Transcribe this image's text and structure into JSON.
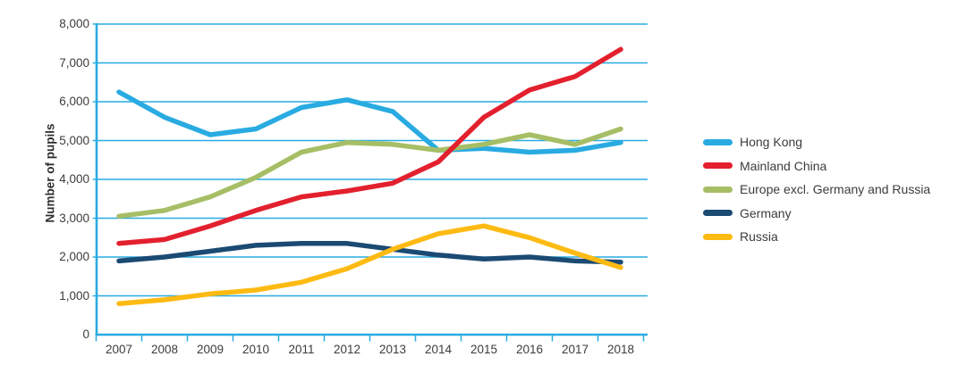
{
  "chart_data": {
    "type": "line",
    "title": "",
    "ylabel": "Number of pupils",
    "xlabel": "",
    "ylim": [
      0,
      8000
    ],
    "ytick_step": 1000,
    "grid": "horizontal",
    "legend_position": "right",
    "axis_color": "#29ABE2",
    "text_color": "#3C3C3B",
    "categories": [
      "2007",
      "2008",
      "2009",
      "2010",
      "2011",
      "2012",
      "2013",
      "2014",
      "2015",
      "2016",
      "2017",
      "2018"
    ],
    "y_tick_labels": [
      "0",
      "1,000",
      "2,000",
      "3,000",
      "4,000",
      "5,000",
      "6,000",
      "7,000",
      "8,000"
    ],
    "series": [
      {
        "name": "Hong Kong",
        "color": "#29ABE2",
        "values": [
          6250,
          5600,
          5150,
          5300,
          5850,
          6050,
          5750,
          4750,
          4800,
          4700,
          4750,
          4950
        ]
      },
      {
        "name": "Mainland China",
        "color": "#E3202E",
        "values": [
          2350,
          2450,
          2800,
          3200,
          3550,
          3700,
          3900,
          4450,
          5600,
          6300,
          6650,
          7350
        ]
      },
      {
        "name": "Europe excl. Germany and Russia",
        "color": "#A6BE65",
        "values": [
          3050,
          3200,
          3550,
          4050,
          4700,
          4950,
          4900,
          4750,
          4900,
          5150,
          4900,
          5300
        ]
      },
      {
        "name": "Germany",
        "color": "#1B4A73",
        "values": [
          1900,
          2000,
          2150,
          2300,
          2350,
          2350,
          2200,
          2050,
          1950,
          2000,
          1900,
          1870
        ]
      },
      {
        "name": "Russia",
        "color": "#FDBA12",
        "values": [
          800,
          900,
          1050,
          1150,
          1350,
          1700,
          2200,
          2600,
          2800,
          2500,
          2100,
          1730
        ]
      }
    ],
    "draw_order": [
      "Hong Kong",
      "Europe excl. Germany and Russia",
      "Mainland China",
      "Germany",
      "Russia"
    ]
  }
}
